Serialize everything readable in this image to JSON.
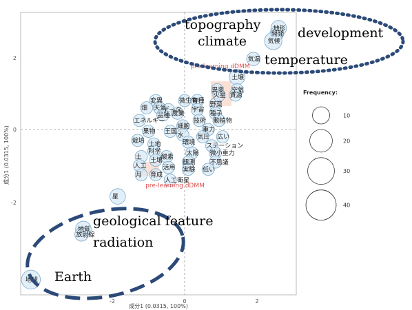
{
  "chart_data": {
    "type": "scatter",
    "title": "",
    "xlabel": "成分1 (0.0315, 100%)",
    "ylabel": "成分1 (0.0315, 100%)",
    "xlim": [
      -4.5,
      3.3
    ],
    "ylim": [
      -4.5,
      3.2
    ],
    "xticks": [
      "-2",
      "0",
      "2"
    ],
    "yticks": [
      "2",
      "0",
      "-2"
    ],
    "grid": false,
    "reference_lines": [
      0,
      0
    ],
    "legend": {
      "title": "Frequency:",
      "placement": "right",
      "entries": [
        {
          "label": "10",
          "value": 10
        },
        {
          "label": "20",
          "value": 20
        },
        {
          "label": "30",
          "value": 30
        },
        {
          "label": "40",
          "value": 40
        }
      ]
    },
    "points": [
      {
        "label": "地形",
        "x": 2.6,
        "y": 2.8,
        "freq": 6
      },
      {
        "label": "開発",
        "x": 2.55,
        "y": 2.65,
        "freq": 4
      },
      {
        "label": "気候",
        "x": 2.45,
        "y": 2.45,
        "freq": 8
      },
      {
        "label": "気温",
        "x": 1.9,
        "y": 1.95,
        "freq": 4
      },
      {
        "label": "土壌",
        "x": 1.45,
        "y": 1.45,
        "freq": 6
      },
      {
        "label": "星",
        "x": -1.85,
        "y": -1.85,
        "freq": 6
      },
      {
        "label": "地質",
        "x": -2.8,
        "y": -2.75,
        "freq": 6
      },
      {
        "label": "放射線",
        "x": -2.85,
        "y": -2.9,
        "freq": 4
      },
      {
        "label": "地球",
        "x": -4.25,
        "y": -4.15,
        "freq": 10
      },
      {
        "label": "微生物",
        "x": 0.0,
        "y": 0.8,
        "freq": 3
      },
      {
        "label": "育種",
        "x": 0.35,
        "y": 0.8,
        "freq": 3
      },
      {
        "label": "変異",
        "x": -0.8,
        "y": 0.8,
        "freq": 3
      },
      {
        "label": "天気",
        "x": -0.7,
        "y": 0.6,
        "freq": 3
      },
      {
        "label": "畑",
        "x": -1.05,
        "y": 0.6,
        "freq": 3
      },
      {
        "label": "データ",
        "x": -0.45,
        "y": 0.55,
        "freq": 3
      },
      {
        "label": "宇宙",
        "x": 0.35,
        "y": 0.55,
        "freq": 3
      },
      {
        "label": "野菜",
        "x": 0.85,
        "y": 0.7,
        "freq": 3
      },
      {
        "label": "品種",
        "x": -0.6,
        "y": 0.4,
        "freq": 3
      },
      {
        "label": "農業",
        "x": -0.2,
        "y": 0.45,
        "freq": 3
      },
      {
        "label": "種子",
        "x": 0.85,
        "y": 0.45,
        "freq": 3
      },
      {
        "label": "異変",
        "x": 0.9,
        "y": 1.1,
        "freq": 3
      },
      {
        "label": "空気",
        "x": 1.45,
        "y": 1.1,
        "freq": 3
      },
      {
        "label": "火星",
        "x": 0.95,
        "y": 0.95,
        "freq": 3
      },
      {
        "label": "資源",
        "x": 1.4,
        "y": 0.95,
        "freq": 3
      },
      {
        "label": "エネルギー",
        "x": -1.25,
        "y": 0.25,
        "freq": 3
      },
      {
        "label": "技術",
        "x": 0.4,
        "y": 0.25,
        "freq": 3
      },
      {
        "label": "動植物",
        "x": 0.95,
        "y": 0.25,
        "freq": 3
      },
      {
        "label": "細胞",
        "x": -0.05,
        "y": 0.1,
        "freq": 3
      },
      {
        "label": "果物",
        "x": -1.0,
        "y": -0.05,
        "freq": 3
      },
      {
        "label": "王国",
        "x": -0.4,
        "y": -0.05,
        "freq": 3
      },
      {
        "label": "重力",
        "x": 0.65,
        "y": 0.0,
        "freq": 3
      },
      {
        "label": "水",
        "x": -0.05,
        "y": -0.15,
        "freq": 3
      },
      {
        "label": "栽培",
        "x": -1.3,
        "y": -0.3,
        "freq": 3
      },
      {
        "label": "土地",
        "x": -0.85,
        "y": -0.4,
        "freq": 3
      },
      {
        "label": "気圧",
        "x": 0.5,
        "y": -0.2,
        "freq": 3
      },
      {
        "label": "広い",
        "x": 1.05,
        "y": -0.2,
        "freq": 3
      },
      {
        "label": "環境",
        "x": 0.1,
        "y": -0.35,
        "freq": 3
      },
      {
        "label": "ステーション",
        "x": 0.75,
        "y": -0.45,
        "freq": 3
      },
      {
        "label": "科学",
        "x": -0.85,
        "y": -0.6,
        "freq": 3
      },
      {
        "label": "太陽",
        "x": 0.2,
        "y": -0.65,
        "freq": 3
      },
      {
        "label": "微小重力",
        "x": 0.85,
        "y": -0.65,
        "freq": 3
      },
      {
        "label": "土",
        "x": -1.2,
        "y": -0.75,
        "freq": 3
      },
      {
        "label": "酸素",
        "x": -0.5,
        "y": -0.75,
        "freq": 3
      },
      {
        "label": "土壌",
        "x": -0.8,
        "y": -0.85,
        "freq": 3
      },
      {
        "label": "観測",
        "x": 0.1,
        "y": -0.9,
        "freq": 3
      },
      {
        "label": "不思議",
        "x": 0.85,
        "y": -0.9,
        "freq": 3
      },
      {
        "label": "人工",
        "x": -1.25,
        "y": -1.0,
        "freq": 3
      },
      {
        "label": "活用",
        "x": -0.45,
        "y": -1.05,
        "freq": 3
      },
      {
        "label": "実験",
        "x": 0.1,
        "y": -1.1,
        "freq": 3
      },
      {
        "label": "低い",
        "x": 0.65,
        "y": -1.1,
        "freq": 3
      },
      {
        "label": "月",
        "x": -1.2,
        "y": -1.25,
        "freq": 3
      },
      {
        "label": "育成",
        "x": -0.8,
        "y": -1.25,
        "freq": 3
      },
      {
        "label": "人工衛星",
        "x": -0.4,
        "y": -1.4,
        "freq": 3
      }
    ],
    "markers": [
      {
        "label": "pre-learning dDMM",
        "x": 0.7,
        "y": 1.7
      },
      {
        "label": "pre-learning dDMM",
        "x": -0.55,
        "y": -1.6
      }
    ],
    "annotations": [
      {
        "text": "topography",
        "group": "top"
      },
      {
        "text": "climate",
        "group": "top"
      },
      {
        "text": "development",
        "group": "top"
      },
      {
        "text": "temperature",
        "group": "top"
      },
      {
        "text": "geological feature",
        "group": "bottom"
      },
      {
        "text": "radiation",
        "group": "bottom"
      },
      {
        "text": "Earth",
        "group": "bottom"
      }
    ],
    "colors": {
      "bubble_fill": "#d6e8f5",
      "bubble_stroke": "#7aa8c8",
      "pre_label": "#e05050",
      "pre_box": "#f6c9b4",
      "ellipse": "#2c4a78"
    }
  }
}
